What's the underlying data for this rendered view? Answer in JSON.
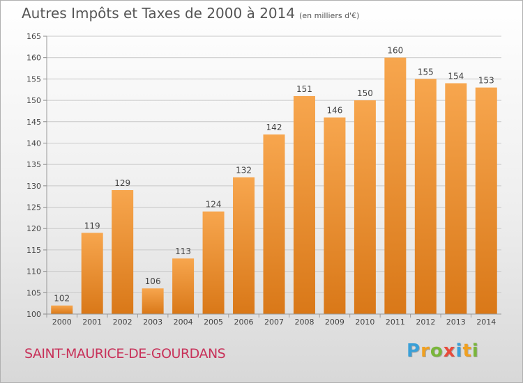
{
  "title": {
    "main": "Autres Impôts et Taxes de 2000 à 2014",
    "unit": "(en milliers d'€)"
  },
  "commune": "SAINT-MAURICE-DE-GOURDANS",
  "logo": {
    "text": "Proxiti",
    "letters": [
      {
        "ch": "P",
        "color": "#3aa0d8"
      },
      {
        "ch": "r",
        "color": "#f0a020"
      },
      {
        "ch": "o",
        "color": "#79b63a"
      },
      {
        "ch": "x",
        "color": "#e84a3a"
      },
      {
        "ch": "i",
        "color": "#3aa0d8"
      },
      {
        "ch": "t",
        "color": "#f0a020"
      },
      {
        "ch": "i",
        "color": "#79b63a"
      }
    ]
  },
  "colors": {
    "bar_top": "#f7a64e",
    "bar_bottom": "#d97818",
    "grid": "#c8c8c8"
  },
  "chart_data": {
    "type": "bar",
    "categories": [
      "2000",
      "2001",
      "2002",
      "2003",
      "2004",
      "2005",
      "2006",
      "2007",
      "2008",
      "2009",
      "2010",
      "2011",
      "2012",
      "2013",
      "2014"
    ],
    "values": [
      102,
      119,
      129,
      106,
      113,
      124,
      132,
      142,
      151,
      146,
      150,
      160,
      155,
      154,
      153
    ],
    "ylim": [
      100,
      165
    ],
    "yticks": [
      100,
      105,
      110,
      115,
      120,
      125,
      130,
      135,
      140,
      145,
      150,
      155,
      160,
      165
    ],
    "grid": true
  }
}
